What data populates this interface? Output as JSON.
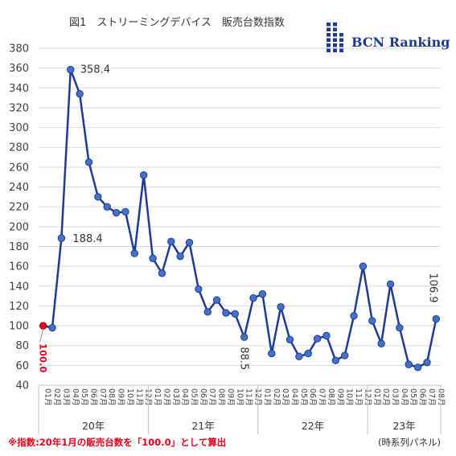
{
  "title": "図1　ストリーミングデバイス　販売台数指数",
  "logo": {
    "text": "BCN Ranking",
    "color": "#1f3a93"
  },
  "note": "※指数:20年1月の販売台数を「100.0」として算出",
  "source": "(時系列パネル)",
  "colors": {
    "line": "#1f3a93",
    "marker": "#4472c4",
    "first_marker": "#e8001c",
    "note": "#e8001c"
  },
  "chart_data": {
    "type": "line",
    "ylim": [
      40,
      380
    ],
    "yticks": [
      40,
      60,
      80,
      100,
      120,
      140,
      160,
      180,
      200,
      220,
      240,
      260,
      280,
      300,
      320,
      340,
      360,
      380
    ],
    "grid": true,
    "categories": [
      "01月",
      "02月",
      "03月",
      "04月",
      "05月",
      "06月",
      "07月",
      "08月",
      "09月",
      "10月",
      "11月",
      "12月",
      "01月",
      "02月",
      "03月",
      "04月",
      "05月",
      "06月",
      "07月",
      "08月",
      "09月",
      "10月",
      "11月",
      "12月",
      "01月",
      "02月",
      "03月",
      "04月",
      "05月",
      "06月",
      "07月",
      "08月",
      "09月",
      "10月",
      "11月",
      "12月",
      "01月",
      "02月",
      "03月",
      "04月",
      "05月",
      "06月",
      "07月",
      "08月"
    ],
    "years": [
      {
        "label": "20年",
        "start": 0,
        "end": 11
      },
      {
        "label": "21年",
        "start": 12,
        "end": 23
      },
      {
        "label": "22年",
        "start": 24,
        "end": 35
      },
      {
        "label": "23年",
        "start": 36,
        "end": 43
      }
    ],
    "series": [
      {
        "values": [
          100.0,
          98,
          188.4,
          358.4,
          334,
          265,
          230,
          220,
          214,
          215,
          173,
          252,
          168,
          153,
          185,
          170,
          184,
          137,
          114,
          126,
          113,
          112,
          88.5,
          128,
          132,
          72,
          119,
          86,
          69,
          72,
          87,
          90,
          65,
          70,
          110,
          160,
          105,
          82,
          142,
          98,
          61,
          58,
          63,
          106.9
        ]
      }
    ],
    "data_labels": [
      {
        "index": 0,
        "text": "100.0"
      },
      {
        "index": 2,
        "text": "188.4"
      },
      {
        "index": 3,
        "text": "358.4"
      },
      {
        "index": 22,
        "text": "88.5"
      },
      {
        "index": 43,
        "text": "106.9"
      }
    ]
  }
}
